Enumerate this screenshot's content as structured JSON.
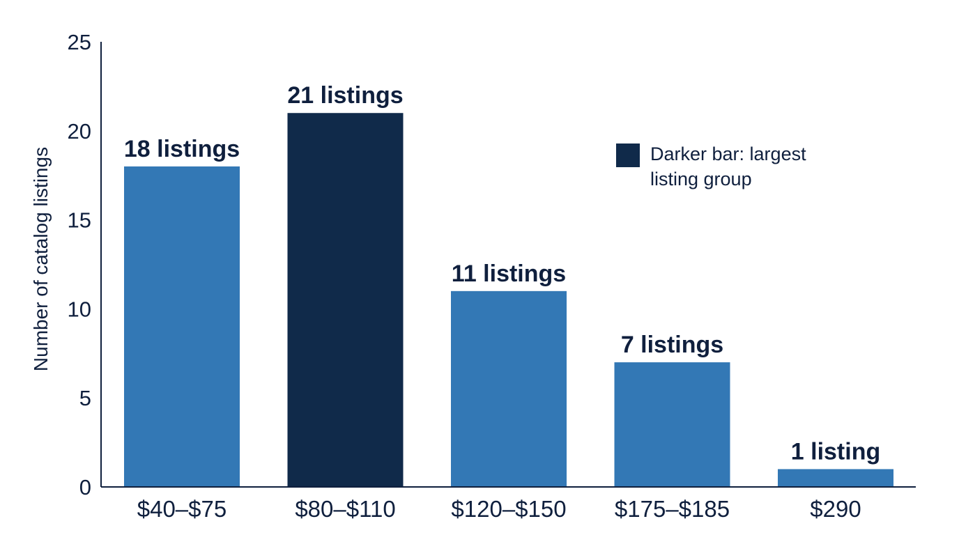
{
  "chart_data": {
    "type": "bar",
    "title": "",
    "xlabel": "",
    "ylabel": "Number of catalog listings",
    "ylim": [
      0,
      25
    ],
    "yticks": [
      0,
      5,
      10,
      15,
      20,
      25
    ],
    "grid": false,
    "categories": [
      "$40–$75",
      "$80–$110",
      "$120–$150",
      "$175–$185",
      "$290"
    ],
    "values": [
      18,
      21,
      11,
      7,
      1
    ],
    "data_labels": [
      "18 listings",
      "21 listings",
      "11 listings",
      "7 listings",
      "1 listing"
    ],
    "highlight_index": 1,
    "colors": {
      "bar": "#3378b5",
      "highlight": "#102a4a",
      "axis": "#0f1f3d",
      "text": "#0f1f3d"
    },
    "legend": {
      "placement": "top-right",
      "lines": [
        "Darker bar: largest",
        "listing group"
      ],
      "swatch_color": "#102a4a"
    }
  }
}
